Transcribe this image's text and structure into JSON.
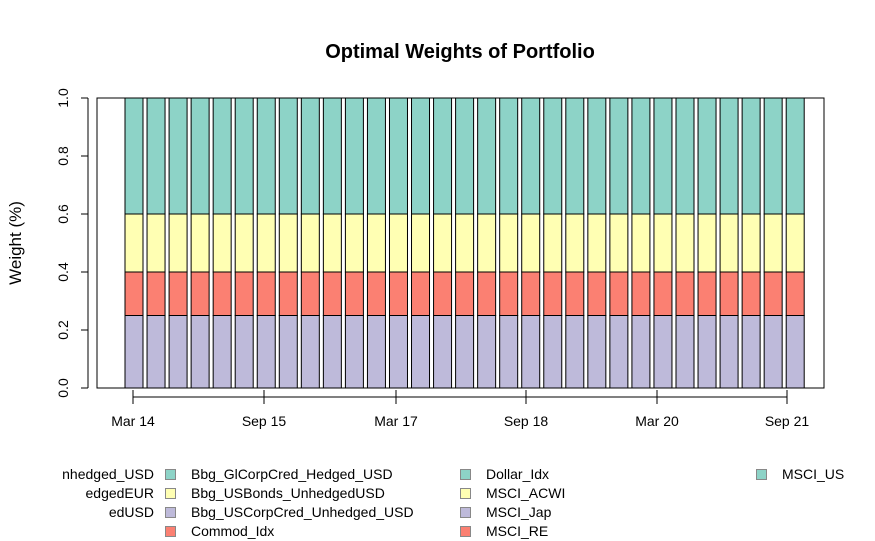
{
  "chart_data": {
    "type": "bar",
    "stacked": true,
    "title": "Optimal Weights of Portfolio",
    "xlabel": "",
    "ylabel": "Weight (%)",
    "ylim": [
      0,
      1
    ],
    "yticks": [
      "0.0",
      "0.2",
      "0.4",
      "0.6",
      "0.8",
      "1.0"
    ],
    "x_tick_labels": [
      "Mar 14",
      "Sep 15",
      "Mar 17",
      "Sep 18",
      "Mar 20",
      "Sep 21"
    ],
    "num_bars": 31,
    "series": [
      {
        "name": "Bbg_USCorpCred_Unhedged_USD",
        "color": "#BEBADA",
        "values": [
          0.25,
          0.25,
          0.25,
          0.25,
          0.25,
          0.25,
          0.25,
          0.25,
          0.25,
          0.25,
          0.25,
          0.25,
          0.25,
          0.25,
          0.25,
          0.25,
          0.25,
          0.25,
          0.25,
          0.25,
          0.25,
          0.25,
          0.25,
          0.25,
          0.25,
          0.25,
          0.25,
          0.25,
          0.25,
          0.25,
          0.25
        ]
      },
      {
        "name": "Commod_Idx",
        "color": "#FB8072",
        "values": [
          0.15,
          0.15,
          0.15,
          0.15,
          0.15,
          0.15,
          0.15,
          0.15,
          0.15,
          0.15,
          0.15,
          0.15,
          0.15,
          0.15,
          0.15,
          0.15,
          0.15,
          0.15,
          0.15,
          0.15,
          0.15,
          0.15,
          0.15,
          0.15,
          0.15,
          0.15,
          0.15,
          0.15,
          0.15,
          0.15,
          0.15
        ]
      },
      {
        "name": "Bbg_USBonds_UnhedgedUSD",
        "color": "#FFFFB3",
        "values": [
          0.2,
          0.2,
          0.2,
          0.2,
          0.2,
          0.2,
          0.2,
          0.2,
          0.2,
          0.2,
          0.2,
          0.2,
          0.2,
          0.2,
          0.2,
          0.2,
          0.2,
          0.2,
          0.2,
          0.2,
          0.2,
          0.2,
          0.2,
          0.2,
          0.2,
          0.2,
          0.2,
          0.2,
          0.2,
          0.2,
          0.2
        ]
      },
      {
        "name": "Bbg_GlCorpCred_Hedged_USD",
        "color": "#8DD3C7",
        "values": [
          0.4,
          0.4,
          0.4,
          0.4,
          0.4,
          0.4,
          0.4,
          0.4,
          0.4,
          0.4,
          0.4,
          0.4,
          0.4,
          0.4,
          0.4,
          0.4,
          0.4,
          0.4,
          0.4,
          0.4,
          0.4,
          0.4,
          0.4,
          0.4,
          0.4,
          0.4,
          0.4,
          0.4,
          0.4,
          0.4,
          0.4
        ]
      }
    ]
  },
  "legend": {
    "col0": [
      {
        "label": "nhedged_USD",
        "color": "#8DD3C7"
      },
      {
        "label": "edgedEUR",
        "color": "#FFFFB3"
      },
      {
        "label": "edUSD",
        "color": "#BEBADA"
      }
    ],
    "col1": [
      {
        "label": "Bbg_GlCorpCred_Hedged_USD",
        "color": "#8DD3C7"
      },
      {
        "label": "Bbg_USBonds_UnhedgedUSD",
        "color": "#FFFFB3"
      },
      {
        "label": "Bbg_USCorpCred_Unhedged_USD",
        "color": "#BEBADA"
      },
      {
        "label": "Commod_Idx",
        "color": "#FB8072"
      }
    ],
    "col2": [
      {
        "label": "Dollar_Idx",
        "color": "#8DD3C7"
      },
      {
        "label": "MSCI_ACWI",
        "color": "#FFFFB3"
      },
      {
        "label": "MSCI_Jap",
        "color": "#BEBADA"
      },
      {
        "label": "MSCI_RE",
        "color": "#FB8072"
      }
    ],
    "col3": [
      {
        "label": "MSCI_US",
        "color": "#8DD3C7"
      }
    ]
  }
}
